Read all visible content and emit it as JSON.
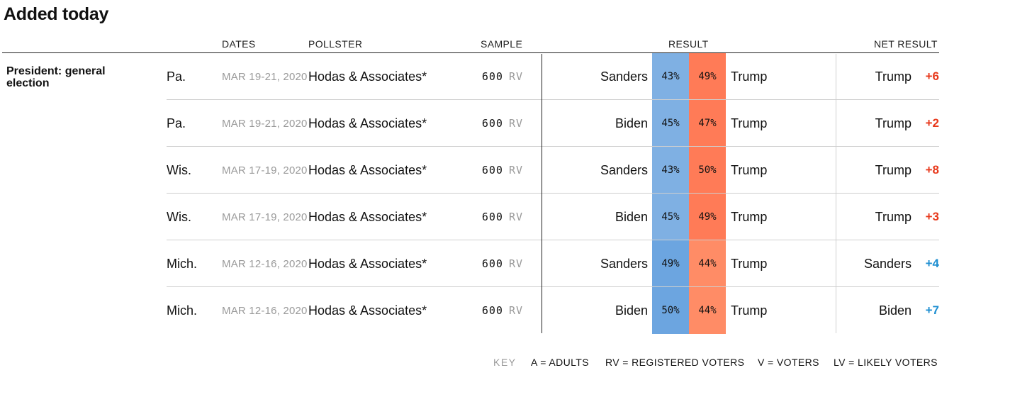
{
  "title": "Added today",
  "headers": {
    "dates": "DATES",
    "pollster": "POLLSTER",
    "sample": "SAMPLE",
    "result": "RESULT",
    "net_result": "NET RESULT"
  },
  "race": "President: general election",
  "colors": {
    "dem_fill": [
      "#7fb0e3",
      "#6ca5e0"
    ],
    "rep_fill": [
      "#ff7b57",
      "#ff8c66"
    ],
    "dem_text": "#1f8fd1",
    "rep_text": "#e8391c"
  },
  "rows": [
    {
      "state": "Pa.",
      "dates": "MAR 19-21, 2020",
      "pollster": "Hodas & Associates*",
      "sample_n": "600",
      "sample_type": "RV",
      "cand1": "Sanders",
      "pct1": "43%",
      "pct2": "49%",
      "cand2": "Trump",
      "winner": "Trump",
      "margin": "+6",
      "party": "rep"
    },
    {
      "state": "Pa.",
      "dates": "MAR 19-21, 2020",
      "pollster": "Hodas & Associates*",
      "sample_n": "600",
      "sample_type": "RV",
      "cand1": "Biden",
      "pct1": "45%",
      "pct2": "47%",
      "cand2": "Trump",
      "winner": "Trump",
      "margin": "+2",
      "party": "rep"
    },
    {
      "state": "Wis.",
      "dates": "MAR 17-19, 2020",
      "pollster": "Hodas & Associates*",
      "sample_n": "600",
      "sample_type": "RV",
      "cand1": "Sanders",
      "pct1": "43%",
      "pct2": "50%",
      "cand2": "Trump",
      "winner": "Trump",
      "margin": "+8",
      "party": "rep"
    },
    {
      "state": "Wis.",
      "dates": "MAR 17-19, 2020",
      "pollster": "Hodas & Associates*",
      "sample_n": "600",
      "sample_type": "RV",
      "cand1": "Biden",
      "pct1": "45%",
      "pct2": "49%",
      "cand2": "Trump",
      "winner": "Trump",
      "margin": "+3",
      "party": "rep"
    },
    {
      "state": "Mich.",
      "dates": "MAR 12-16, 2020",
      "pollster": "Hodas & Associates*",
      "sample_n": "600",
      "sample_type": "RV",
      "cand1": "Sanders",
      "pct1": "49%",
      "pct2": "44%",
      "cand2": "Trump",
      "winner": "Sanders",
      "margin": "+4",
      "party": "dem"
    },
    {
      "state": "Mich.",
      "dates": "MAR 12-16, 2020",
      "pollster": "Hodas & Associates*",
      "sample_n": "600",
      "sample_type": "RV",
      "cand1": "Biden",
      "pct1": "50%",
      "pct2": "44%",
      "cand2": "Trump",
      "winner": "Biden",
      "margin": "+7",
      "party": "dem"
    }
  ],
  "key": {
    "label": "KEY",
    "adults": "A = ADULTS",
    "rv": "RV = REGISTERED VOTERS",
    "v": "V = VOTERS",
    "lv": "LV = LIKELY VOTERS"
  }
}
